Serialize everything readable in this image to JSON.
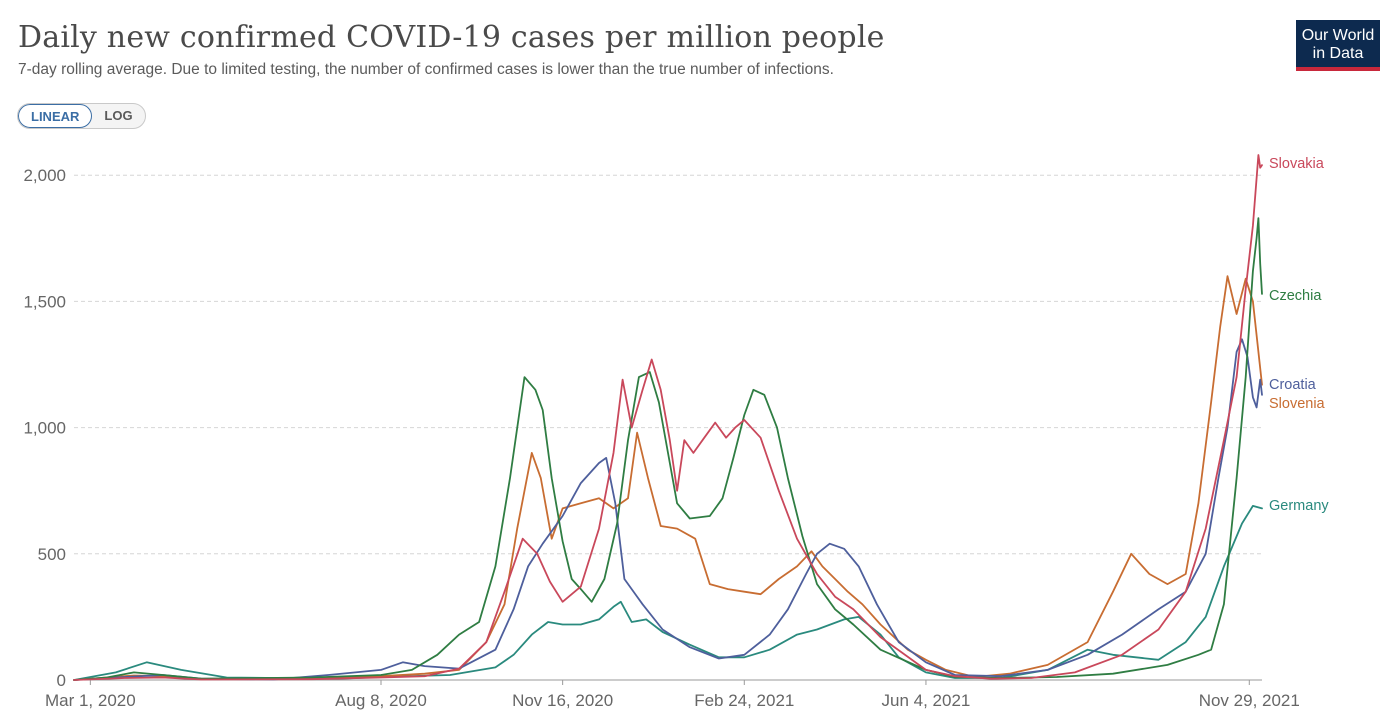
{
  "header": {
    "title": "Daily new confirmed COVID-19 cases per million people",
    "subtitle": "7-day rolling average. Due to limited testing, the number of confirmed cases is lower than the true number of infections."
  },
  "logo": {
    "line1": "Our World",
    "line2": "in Data",
    "bg": "#0d2a4f",
    "accent": "#c8283b"
  },
  "controls": {
    "linear_label": "LINEAR",
    "log_label": "LOG",
    "selected": "linear"
  },
  "chart_data": {
    "type": "line",
    "title": "Daily new confirmed COVID-19 cases per million people",
    "subtitle": "7-day rolling average. Due to limited testing, the number of confirmed cases is lower than the true number of infections.",
    "x_start": "2020-02-21",
    "x_end": "2021-12-06",
    "ylim": [
      0,
      2100
    ],
    "yticks": [
      0,
      500,
      1000,
      1500,
      2000
    ],
    "ytick_labels": [
      "0",
      "500",
      "1,000",
      "1,500",
      "2,000"
    ],
    "xticks": [
      "2020-03-01",
      "2020-08-08",
      "2020-11-16",
      "2021-02-24",
      "2021-06-04",
      "2021-11-29"
    ],
    "xtick_labels": [
      "Mar 1, 2020",
      "Aug 8, 2020",
      "Nov 16, 2020",
      "Feb 24, 2021",
      "Jun 4, 2021",
      "Nov 29, 2021"
    ],
    "grid": "horizontal dashed",
    "legend": "labels at line ends (right)",
    "series": [
      {
        "name": "Slovakia",
        "color": "#c9485b",
        "points": [
          [
            "2020-02-21",
            0
          ],
          [
            "2020-03-20",
            8
          ],
          [
            "2020-04-10",
            10
          ],
          [
            "2020-05-01",
            2
          ],
          [
            "2020-07-01",
            3
          ],
          [
            "2020-08-08",
            10
          ],
          [
            "2020-09-01",
            15
          ],
          [
            "2020-09-20",
            45
          ],
          [
            "2020-10-05",
            150
          ],
          [
            "2020-10-15",
            350
          ],
          [
            "2020-10-25",
            560
          ],
          [
            "2020-11-02",
            500
          ],
          [
            "2020-11-09",
            390
          ],
          [
            "2020-11-16",
            310
          ],
          [
            "2020-11-26",
            370
          ],
          [
            "2020-12-06",
            600
          ],
          [
            "2020-12-14",
            900
          ],
          [
            "2020-12-19",
            1190
          ],
          [
            "2020-12-24",
            1000
          ],
          [
            "2020-12-30",
            1150
          ],
          [
            "2021-01-04",
            1270
          ],
          [
            "2021-01-09",
            1150
          ],
          [
            "2021-01-14",
            950
          ],
          [
            "2021-01-18",
            750
          ],
          [
            "2021-01-22",
            950
          ],
          [
            "2021-01-27",
            900
          ],
          [
            "2021-02-02",
            960
          ],
          [
            "2021-02-08",
            1020
          ],
          [
            "2021-02-14",
            960
          ],
          [
            "2021-02-19",
            1000
          ],
          [
            "2021-02-24",
            1030
          ],
          [
            "2021-03-05",
            960
          ],
          [
            "2021-03-15",
            750
          ],
          [
            "2021-03-25",
            560
          ],
          [
            "2021-04-05",
            420
          ],
          [
            "2021-04-15",
            330
          ],
          [
            "2021-04-25",
            280
          ],
          [
            "2021-05-10",
            170
          ],
          [
            "2021-06-04",
            40
          ],
          [
            "2021-06-20",
            15
          ],
          [
            "2021-07-10",
            5
          ],
          [
            "2021-08-01",
            8
          ],
          [
            "2021-08-25",
            30
          ],
          [
            "2021-09-20",
            100
          ],
          [
            "2021-10-10",
            200
          ],
          [
            "2021-10-25",
            350
          ],
          [
            "2021-11-05",
            600
          ],
          [
            "2021-11-15",
            950
          ],
          [
            "2021-11-22",
            1200
          ],
          [
            "2021-11-27",
            1550
          ],
          [
            "2021-12-01",
            1800
          ],
          [
            "2021-12-04",
            2080
          ],
          [
            "2021-12-05",
            2030
          ],
          [
            "2021-12-06",
            2040
          ]
        ]
      },
      {
        "name": "Czechia",
        "color": "#2f7d43",
        "points": [
          [
            "2020-02-21",
            0
          ],
          [
            "2020-03-10",
            10
          ],
          [
            "2020-03-25",
            30
          ],
          [
            "2020-04-10",
            20
          ],
          [
            "2020-05-01",
            5
          ],
          [
            "2020-07-01",
            10
          ],
          [
            "2020-08-08",
            20
          ],
          [
            "2020-08-25",
            40
          ],
          [
            "2020-09-08",
            100
          ],
          [
            "2020-09-20",
            180
          ],
          [
            "2020-10-01",
            230
          ],
          [
            "2020-10-10",
            450
          ],
          [
            "2020-10-18",
            800
          ],
          [
            "2020-10-26",
            1200
          ],
          [
            "2020-11-01",
            1150
          ],
          [
            "2020-11-05",
            1070
          ],
          [
            "2020-11-10",
            800
          ],
          [
            "2020-11-16",
            550
          ],
          [
            "2020-11-21",
            400
          ],
          [
            "2020-11-26",
            360
          ],
          [
            "2020-12-02",
            310
          ],
          [
            "2020-12-09",
            400
          ],
          [
            "2020-12-16",
            620
          ],
          [
            "2020-12-22",
            950
          ],
          [
            "2020-12-28",
            1200
          ],
          [
            "2021-01-03",
            1220
          ],
          [
            "2021-01-08",
            1100
          ],
          [
            "2021-01-13",
            900
          ],
          [
            "2021-01-18",
            700
          ],
          [
            "2021-01-25",
            640
          ],
          [
            "2021-02-05",
            650
          ],
          [
            "2021-02-12",
            720
          ],
          [
            "2021-02-18",
            880
          ],
          [
            "2021-02-24",
            1050
          ],
          [
            "2021-03-01",
            1150
          ],
          [
            "2021-03-07",
            1130
          ],
          [
            "2021-03-14",
            1000
          ],
          [
            "2021-03-20",
            800
          ],
          [
            "2021-03-28",
            570
          ],
          [
            "2021-04-05",
            380
          ],
          [
            "2021-04-15",
            280
          ],
          [
            "2021-04-25",
            220
          ],
          [
            "2021-05-10",
            120
          ],
          [
            "2021-06-04",
            40
          ],
          [
            "2021-06-20",
            12
          ],
          [
            "2021-07-15",
            8
          ],
          [
            "2021-08-15",
            12
          ],
          [
            "2021-09-15",
            25
          ],
          [
            "2021-10-15",
            60
          ],
          [
            "2021-11-01",
            100
          ],
          [
            "2021-11-08",
            120
          ],
          [
            "2021-11-15",
            300
          ],
          [
            "2021-11-22",
            800
          ],
          [
            "2021-11-27",
            1200
          ],
          [
            "2021-12-01",
            1620
          ],
          [
            "2021-12-03",
            1750
          ],
          [
            "2021-12-04",
            1830
          ],
          [
            "2021-12-05",
            1650
          ],
          [
            "2021-12-06",
            1530
          ]
        ]
      },
      {
        "name": "Croatia",
        "color": "#4e5f9c",
        "points": [
          [
            "2020-02-21",
            0
          ],
          [
            "2020-03-20",
            12
          ],
          [
            "2020-04-10",
            20
          ],
          [
            "2020-05-01",
            5
          ],
          [
            "2020-06-10",
            2
          ],
          [
            "2020-07-10",
            20
          ],
          [
            "2020-08-08",
            40
          ],
          [
            "2020-08-20",
            70
          ],
          [
            "2020-09-01",
            55
          ],
          [
            "2020-09-20",
            45
          ],
          [
            "2020-10-10",
            120
          ],
          [
            "2020-10-20",
            280
          ],
          [
            "2020-10-28",
            450
          ],
          [
            "2020-11-05",
            540
          ],
          [
            "2020-11-16",
            650
          ],
          [
            "2020-11-26",
            780
          ],
          [
            "2020-12-06",
            860
          ],
          [
            "2020-12-10",
            880
          ],
          [
            "2020-12-15",
            700
          ],
          [
            "2020-12-20",
            400
          ],
          [
            "2020-12-30",
            300
          ],
          [
            "2021-01-10",
            200
          ],
          [
            "2021-01-25",
            130
          ],
          [
            "2021-02-10",
            85
          ],
          [
            "2021-02-24",
            100
          ],
          [
            "2021-03-10",
            180
          ],
          [
            "2021-03-20",
            280
          ],
          [
            "2021-03-30",
            420
          ],
          [
            "2021-04-05",
            500
          ],
          [
            "2021-04-12",
            540
          ],
          [
            "2021-04-20",
            520
          ],
          [
            "2021-04-28",
            450
          ],
          [
            "2021-05-08",
            300
          ],
          [
            "2021-05-20",
            150
          ],
          [
            "2021-06-04",
            70
          ],
          [
            "2021-06-20",
            20
          ],
          [
            "2021-07-15",
            15
          ],
          [
            "2021-08-10",
            40
          ],
          [
            "2021-09-01",
            100
          ],
          [
            "2021-09-20",
            180
          ],
          [
            "2021-10-10",
            280
          ],
          [
            "2021-10-25",
            350
          ],
          [
            "2021-11-05",
            500
          ],
          [
            "2021-11-12",
            800
          ],
          [
            "2021-11-17",
            1000
          ],
          [
            "2021-11-22",
            1300
          ],
          [
            "2021-11-25",
            1350
          ],
          [
            "2021-11-28",
            1280
          ],
          [
            "2021-12-01",
            1120
          ],
          [
            "2021-12-03",
            1080
          ],
          [
            "2021-12-05",
            1190
          ],
          [
            "2021-12-06",
            1130
          ]
        ]
      },
      {
        "name": "Slovenia",
        "color": "#c86d32",
        "points": [
          [
            "2020-02-21",
            0
          ],
          [
            "2020-03-25",
            18
          ],
          [
            "2020-04-10",
            15
          ],
          [
            "2020-05-01",
            3
          ],
          [
            "2020-07-01",
            8
          ],
          [
            "2020-08-08",
            15
          ],
          [
            "2020-09-01",
            25
          ],
          [
            "2020-09-20",
            40
          ],
          [
            "2020-10-05",
            150
          ],
          [
            "2020-10-15",
            300
          ],
          [
            "2020-10-22",
            600
          ],
          [
            "2020-10-30",
            900
          ],
          [
            "2020-11-04",
            800
          ],
          [
            "2020-11-10",
            560
          ],
          [
            "2020-11-16",
            680
          ],
          [
            "2020-11-26",
            700
          ],
          [
            "2020-12-06",
            720
          ],
          [
            "2020-12-14",
            680
          ],
          [
            "2020-12-22",
            720
          ],
          [
            "2020-12-27",
            980
          ],
          [
            "2021-01-02",
            800
          ],
          [
            "2021-01-09",
            610
          ],
          [
            "2021-01-18",
            600
          ],
          [
            "2021-01-28",
            560
          ],
          [
            "2021-02-05",
            380
          ],
          [
            "2021-02-15",
            360
          ],
          [
            "2021-02-24",
            350
          ],
          [
            "2021-03-05",
            340
          ],
          [
            "2021-03-15",
            400
          ],
          [
            "2021-03-25",
            450
          ],
          [
            "2021-04-02",
            510
          ],
          [
            "2021-04-08",
            450
          ],
          [
            "2021-04-15",
            400
          ],
          [
            "2021-04-22",
            350
          ],
          [
            "2021-04-30",
            300
          ],
          [
            "2021-05-10",
            220
          ],
          [
            "2021-05-25",
            120
          ],
          [
            "2021-06-04",
            80
          ],
          [
            "2021-06-15",
            40
          ],
          [
            "2021-07-01",
            12
          ],
          [
            "2021-07-20",
            25
          ],
          [
            "2021-08-10",
            60
          ],
          [
            "2021-09-01",
            150
          ],
          [
            "2021-09-15",
            350
          ],
          [
            "2021-09-25",
            500
          ],
          [
            "2021-10-05",
            420
          ],
          [
            "2021-10-15",
            380
          ],
          [
            "2021-10-25",
            420
          ],
          [
            "2021-11-01",
            700
          ],
          [
            "2021-11-08",
            1100
          ],
          [
            "2021-11-13",
            1400
          ],
          [
            "2021-11-17",
            1600
          ],
          [
            "2021-11-22",
            1450
          ],
          [
            "2021-11-27",
            1590
          ],
          [
            "2021-12-01",
            1500
          ],
          [
            "2021-12-06",
            1170
          ]
        ]
      },
      {
        "name": "Germany",
        "color": "#2a8a7e",
        "points": [
          [
            "2020-02-21",
            0
          ],
          [
            "2020-03-15",
            30
          ],
          [
            "2020-04-01",
            70
          ],
          [
            "2020-04-20",
            40
          ],
          [
            "2020-05-15",
            10
          ],
          [
            "2020-07-15",
            5
          ],
          [
            "2020-08-08",
            12
          ],
          [
            "2020-09-15",
            20
          ],
          [
            "2020-10-10",
            50
          ],
          [
            "2020-10-20",
            100
          ],
          [
            "2020-10-30",
            180
          ],
          [
            "2020-11-08",
            230
          ],
          [
            "2020-11-16",
            220
          ],
          [
            "2020-11-26",
            220
          ],
          [
            "2020-12-06",
            240
          ],
          [
            "2020-12-14",
            290
          ],
          [
            "2020-12-18",
            310
          ],
          [
            "2020-12-24",
            230
          ],
          [
            "2021-01-01",
            240
          ],
          [
            "2021-01-10",
            190
          ],
          [
            "2021-01-25",
            140
          ],
          [
            "2021-02-10",
            90
          ],
          [
            "2021-02-24",
            90
          ],
          [
            "2021-03-10",
            120
          ],
          [
            "2021-03-25",
            180
          ],
          [
            "2021-04-05",
            200
          ],
          [
            "2021-04-20",
            240
          ],
          [
            "2021-04-28",
            250
          ],
          [
            "2021-05-10",
            180
          ],
          [
            "2021-05-20",
            90
          ],
          [
            "2021-06-04",
            30
          ],
          [
            "2021-06-20",
            8
          ],
          [
            "2021-07-15",
            8
          ],
          [
            "2021-08-10",
            40
          ],
          [
            "2021-09-01",
            120
          ],
          [
            "2021-09-15",
            100
          ],
          [
            "2021-10-10",
            80
          ],
          [
            "2021-10-25",
            150
          ],
          [
            "2021-11-05",
            250
          ],
          [
            "2021-11-15",
            450
          ],
          [
            "2021-11-25",
            620
          ],
          [
            "2021-12-01",
            690
          ],
          [
            "2021-12-06",
            680
          ]
        ]
      }
    ]
  }
}
